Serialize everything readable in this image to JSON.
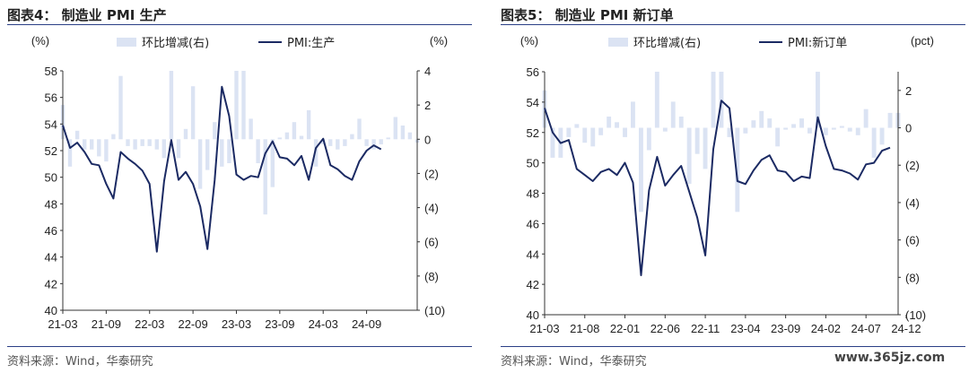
{
  "chart_data": [
    {
      "type": "bar+line",
      "title": "图表4：  制造业 PMI 生产",
      "source": "资料来源：Wind，华泰研究",
      "left_axis": {
        "unit": "(%)",
        "range": [
          40,
          58
        ],
        "ticks": [
          "40",
          "42",
          "44",
          "46",
          "48",
          "50",
          "52",
          "54",
          "56",
          "58"
        ]
      },
      "right_axis": {
        "unit": "(%)",
        "range": [
          -10,
          4
        ],
        "ticks": [
          "4",
          "2",
          "0",
          "(2)",
          "(4)",
          "(6)",
          "(8)",
          "(10)"
        ]
      },
      "x_tick_labels": [
        "21-03",
        "21-09",
        "22-03",
        "22-09",
        "23-03",
        "23-09",
        "24-03",
        "24-09"
      ],
      "x_tick_positions": [
        0,
        6,
        12,
        18,
        24,
        30,
        36,
        42
      ],
      "series": [
        {
          "name": "环比增减(右)",
          "type": "bar",
          "axis": "right",
          "values": [
            2.0,
            -1.6,
            0.5,
            -0.6,
            -0.6,
            -1.0,
            -1.3,
            0.3,
            3.7,
            -0.4,
            -0.6,
            -0.4,
            -0.4,
            -0.6,
            -1.1,
            4.0,
            -1.1,
            0.6,
            3.1,
            -2.9,
            -1.8,
            1.0,
            -1.6,
            -1.4,
            4.0,
            4.0,
            1.2,
            -1.4,
            -4.4,
            -2.8,
            0.1,
            0.4,
            1.0,
            0.2,
            1.7,
            -1.6,
            -0.3,
            -0.4,
            -0.6,
            -0.4,
            0.3,
            1.2,
            -0.4,
            -0.6,
            -0.3,
            0.1,
            1.3,
            0.8,
            0.4,
            -0.2
          ]
        },
        {
          "name": "PMI:生产",
          "type": "line",
          "axis": "left",
          "values": [
            53.9,
            52.2,
            52.6,
            51.9,
            51.0,
            50.9,
            49.5,
            48.4,
            51.9,
            51.4,
            51.0,
            50.5,
            49.5,
            44.4,
            49.7,
            52.8,
            49.8,
            50.4,
            49.5,
            47.8,
            44.6,
            49.8,
            56.8,
            54.6,
            50.2,
            49.8,
            50.1,
            50.0,
            51.8,
            52.7,
            51.5,
            51.4,
            50.9,
            51.6,
            49.8,
            52.2,
            52.9,
            50.9,
            50.6,
            50.1,
            49.8,
            51.2,
            52.0,
            52.4,
            52.1
          ]
        }
      ],
      "legend": [
        "环比增减(右)",
        "PMI:生产"
      ]
    },
    {
      "type": "bar+line",
      "title": "图表5：  制造业 PMI 新订单",
      "source": "资料来源：Wind，华泰研究",
      "left_axis": {
        "unit": "(%)",
        "range": [
          40,
          56
        ],
        "ticks": [
          "40",
          "42",
          "44",
          "46",
          "48",
          "50",
          "52",
          "54",
          "56"
        ]
      },
      "right_axis": {
        "unit": "(pct)",
        "range": [
          -10,
          3
        ],
        "ticks": [
          "2",
          "0",
          "(2)",
          "(4)",
          "(6)",
          "(8)",
          "(10)"
        ]
      },
      "x_tick_labels": [
        "21-03",
        "21-08",
        "22-01",
        "22-06",
        "22-11",
        "23-04",
        "23-09",
        "24-02",
        "24-07",
        "24-12"
      ],
      "x_tick_positions": [
        0,
        5,
        10,
        15,
        20,
        25,
        30,
        35,
        40,
        45
      ],
      "series": [
        {
          "name": "环比增减(右)",
          "type": "bar",
          "axis": "right",
          "values": [
            2.0,
            -1.6,
            -1.6,
            -0.5,
            0.2,
            -0.8,
            -1.0,
            -0.4,
            0.6,
            0.3,
            -0.5,
            1.4,
            -4.5,
            -1.2,
            4.0,
            -0.2,
            1.4,
            0.6,
            -3.0,
            -1.4,
            -2.2,
            4.0,
            4.0,
            -0.5,
            -4.5,
            -0.3,
            0.4,
            0.9,
            0.5,
            -1.0,
            -0.1,
            0.2,
            0.5,
            -0.3,
            4.0,
            -0.4,
            -0.1,
            0.1,
            -0.2,
            -0.4,
            1.0,
            -1.6,
            -0.9,
            0.8,
            0.8
          ]
        },
        {
          "name": "PMI:新订单",
          "type": "line",
          "axis": "left",
          "values": [
            53.6,
            52.0,
            51.3,
            51.5,
            49.6,
            49.2,
            48.8,
            49.4,
            49.6,
            49.2,
            50.0,
            48.7,
            42.6,
            48.2,
            50.4,
            48.5,
            49.2,
            49.8,
            48.1,
            46.4,
            43.9,
            50.9,
            54.1,
            53.6,
            48.8,
            48.6,
            49.5,
            50.2,
            50.5,
            49.5,
            49.4,
            48.8,
            49.1,
            49.0,
            53.0,
            51.1,
            49.6,
            49.5,
            49.3,
            48.9,
            49.9,
            50.0,
            50.8,
            51.0
          ]
        }
      ],
      "legend": [
        "环比增减(右)",
        "PMI:新订单"
      ]
    }
  ],
  "watermark": "www.365jz.com"
}
